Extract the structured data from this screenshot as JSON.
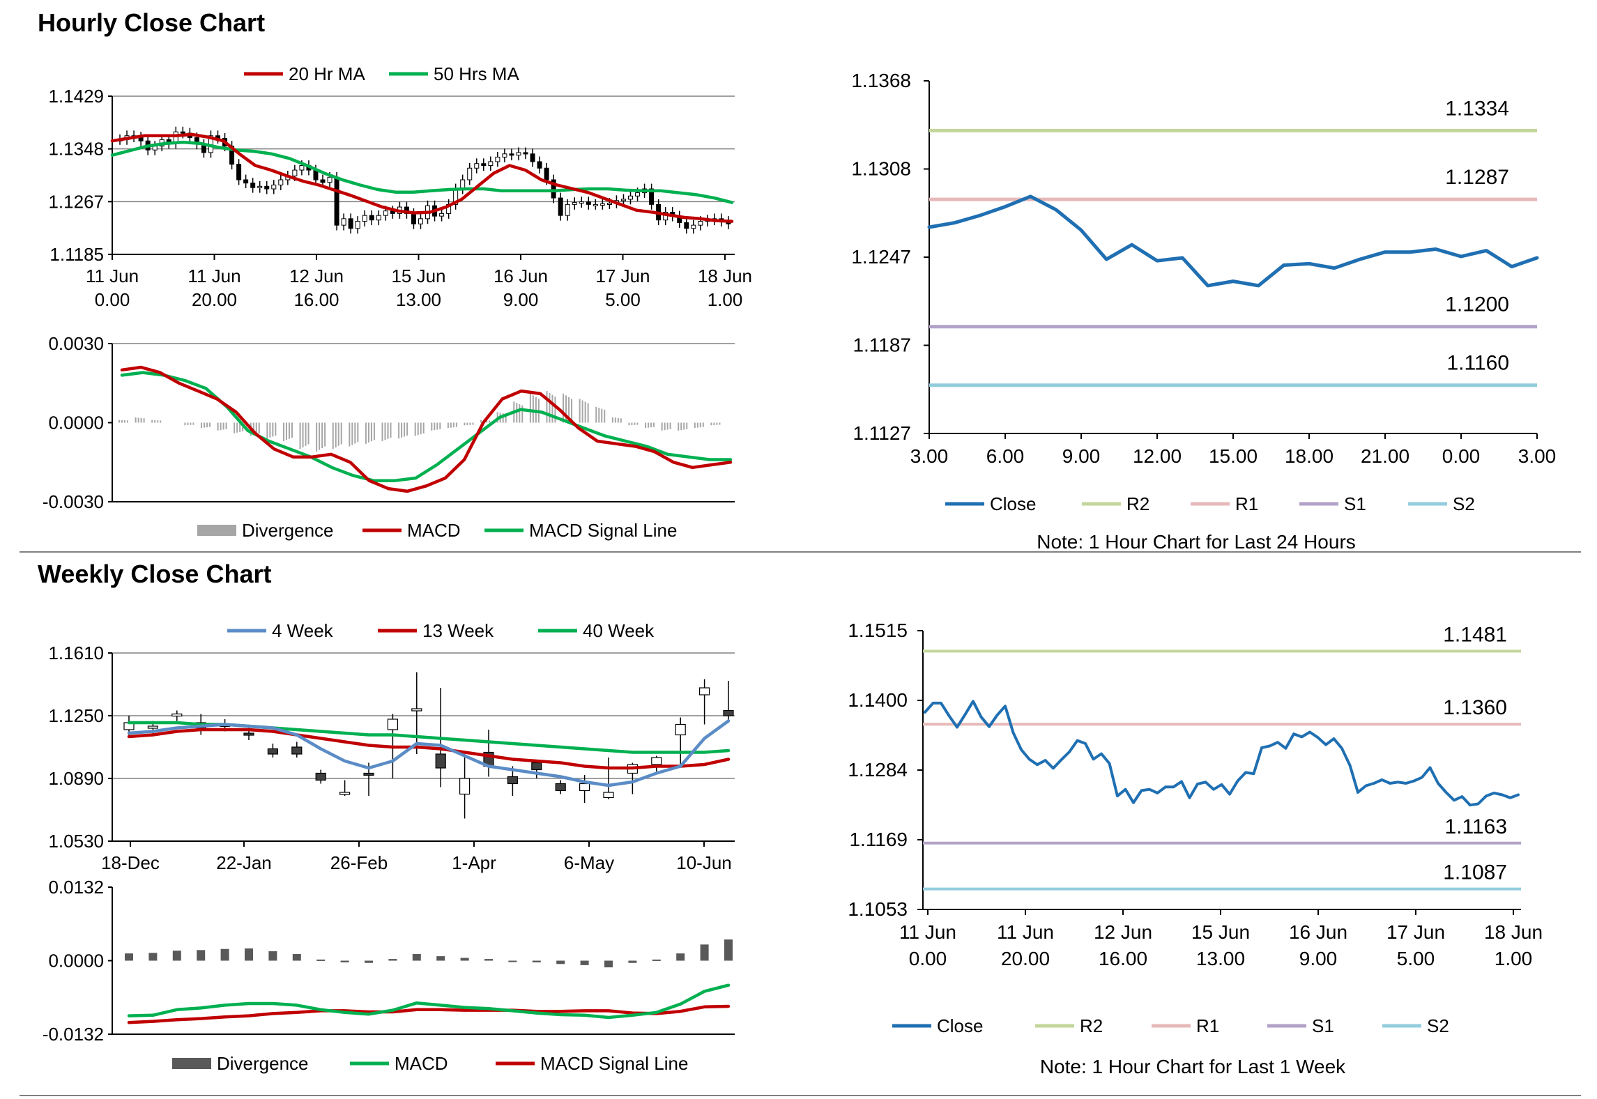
{
  "sections": {
    "hourly_title": "Hourly Close Chart",
    "weekly_title": "Weekly Close Chart"
  },
  "colors": {
    "ma_short": "#C00000",
    "ma_long": "#00B050",
    "close_blue": "#1F6FB2",
    "ma4_blue": "#5B8CC6",
    "r2": "#C3D69B",
    "r1": "#E6B9B8",
    "s1": "#B3A2C7",
    "s2": "#93CDDD",
    "divergence_light": "#A6A6A6",
    "divergence_dark": "#595959",
    "grid": "#808080"
  },
  "chart_data": [
    {
      "id": "hourly_price",
      "type": "candlestick",
      "ylim": [
        1.1185,
        1.1429
      ],
      "yticks": [
        "1.1429",
        "1.1348",
        "1.1267",
        "1.1185"
      ],
      "xticks": [
        {
          "line1": "11 Jun",
          "line2": "0.00"
        },
        {
          "line1": "11 Jun",
          "line2": "20.00"
        },
        {
          "line1": "12 Jun",
          "line2": "16.00"
        },
        {
          "line1": "15 Jun",
          "line2": "13.00"
        },
        {
          "line1": "16 Jun",
          "line2": "9.00"
        },
        {
          "line1": "17 Jun",
          "line2": "5.00"
        },
        {
          "line1": "18 Jun",
          "line2": "1.00"
        }
      ],
      "legend": [
        "20 Hr MA",
        "50 Hrs MA"
      ],
      "close": [
        1.1362,
        1.1368,
        1.1366,
        1.136,
        1.1346,
        1.1352,
        1.1362,
        1.1356,
        1.1374,
        1.1372,
        1.1365,
        1.1355,
        1.1342,
        1.1368,
        1.1364,
        1.1352,
        1.1324,
        1.13,
        1.1295,
        1.1288,
        1.129,
        1.1286,
        1.1292,
        1.13,
        1.1306,
        1.1315,
        1.1322,
        1.1315,
        1.13,
        1.1296,
        1.1304,
        1.123,
        1.124,
        1.1225,
        1.1236,
        1.1245,
        1.1238,
        1.1245,
        1.1252,
        1.1248,
        1.1258,
        1.1248,
        1.1232,
        1.124,
        1.126,
        1.1244,
        1.1248,
        1.1262,
        1.1286,
        1.13,
        1.1318,
        1.1325,
        1.1322,
        1.1328,
        1.1335,
        1.134,
        1.1338,
        1.1342,
        1.134,
        1.1328,
        1.1318,
        1.13,
        1.1272,
        1.1245,
        1.1262,
        1.1265,
        1.1266,
        1.1262,
        1.1262,
        1.1263,
        1.1264,
        1.1268,
        1.127,
        1.1275,
        1.128,
        1.1286,
        1.1262,
        1.1238,
        1.125,
        1.1244,
        1.1234,
        1.1225,
        1.123,
        1.1236,
        1.1238,
        1.124,
        1.1236,
        1.1232
      ],
      "ma20": [
        1.136,
        1.1364,
        1.1368,
        1.1368,
        1.1368,
        1.137,
        1.1366,
        1.136,
        1.134,
        1.1322,
        1.1315,
        1.1306,
        1.1298,
        1.1292,
        1.1284,
        1.1276,
        1.1267,
        1.1258,
        1.1252,
        1.1249,
        1.125,
        1.1258,
        1.127,
        1.129,
        1.131,
        1.1322,
        1.1315,
        1.13,
        1.1292,
        1.1286,
        1.128,
        1.1271,
        1.1262,
        1.1253,
        1.125,
        1.1246,
        1.1242,
        1.124,
        1.1237,
        1.1236
      ],
      "ma50": [
        1.1338,
        1.1345,
        1.1352,
        1.1356,
        1.1358,
        1.1356,
        1.135,
        1.1346,
        1.1344,
        1.134,
        1.1333,
        1.1322,
        1.131,
        1.13,
        1.1292,
        1.1285,
        1.1281,
        1.1281,
        1.1283,
        1.1285,
        1.1286,
        1.1286,
        1.1283,
        1.1283,
        1.1283,
        1.1283,
        1.1285,
        1.1286,
        1.1286,
        1.1284,
        1.1283,
        1.1283,
        1.128,
        1.1277,
        1.1272,
        1.1265
      ]
    },
    {
      "id": "hourly_macd",
      "type": "line+bar",
      "ylim": [
        -0.003,
        0.003
      ],
      "yticks": [
        "0.0030",
        "0.0000",
        "-0.0030"
      ],
      "legend": [
        "Divergence",
        "MACD",
        "MACD Signal Line"
      ],
      "macd": [
        0.002,
        0.0021,
        0.0019,
        0.0015,
        0.0012,
        0.0009,
        0.0004,
        -0.0004,
        -0.001,
        -0.0013,
        -0.0013,
        -0.0012,
        -0.0015,
        -0.0022,
        -0.0025,
        -0.0026,
        -0.0024,
        -0.0021,
        -0.0014,
        0.0,
        0.0009,
        0.0012,
        0.0011,
        0.0005,
        -0.0002,
        -0.0007,
        -0.0008,
        -0.0009,
        -0.0011,
        -0.0015,
        -0.0017,
        -0.0016,
        -0.0015
      ],
      "signal": [
        0.0018,
        0.0019,
        0.0018,
        0.0016,
        0.0013,
        0.0006,
        -0.0003,
        -0.0007,
        -0.001,
        -0.0013,
        -0.0017,
        -0.002,
        -0.0022,
        -0.0022,
        -0.0021,
        -0.0016,
        -0.001,
        -0.0004,
        0.0002,
        0.0005,
        0.0004,
        0.0001,
        -0.0002,
        -0.0005,
        -0.0007,
        -0.0009,
        -0.0012,
        -0.0013,
        -0.0014,
        -0.0014
      ],
      "divergence": [
        0.0001,
        0.0002,
        0.0001,
        0.0,
        -0.0001,
        -0.0002,
        -0.0003,
        -0.0004,
        -0.0005,
        -0.0006,
        -0.0007,
        -0.001,
        -0.0011,
        -0.001,
        -0.0009,
        -0.0008,
        -0.0007,
        -0.0006,
        -0.0005,
        -0.0003,
        -0.0002,
        -0.0001,
        0.0001,
        0.0004,
        0.0008,
        0.0011,
        0.0012,
        0.0011,
        0.0009,
        0.0006,
        0.0002,
        -0.0001,
        -0.0002,
        -0.0003,
        -0.0003,
        -0.0002,
        -0.0001,
        0.0
      ]
    },
    {
      "id": "hourly_24h",
      "type": "line",
      "ylim": [
        1.1127,
        1.1368
      ],
      "yticks": [
        "1.1368",
        "1.1308",
        "1.1247",
        "1.1187",
        "1.1127"
      ],
      "xticks": [
        "3.00",
        "6.00",
        "9.00",
        "12.00",
        "15.00",
        "18.00",
        "21.00",
        "0.00",
        "3.00"
      ],
      "legend": [
        "Close",
        "R2",
        "R1",
        "S1",
        "S2"
      ],
      "levels": [
        {
          "name": "R2",
          "value": 1.1334,
          "label": "1.1334"
        },
        {
          "name": "R1",
          "value": 1.1287,
          "label": "1.1287"
        },
        {
          "name": "S1",
          "value": 1.12,
          "label": "1.1200"
        },
        {
          "name": "S2",
          "value": 1.116,
          "label": "1.1160"
        }
      ],
      "close": [
        1.1268,
        1.1271,
        1.1276,
        1.1282,
        1.1289,
        1.128,
        1.1266,
        1.1246,
        1.1256,
        1.1245,
        1.1247,
        1.1228,
        1.1231,
        1.1228,
        1.1242,
        1.1243,
        1.124,
        1.1246,
        1.1251,
        1.1251,
        1.1253,
        1.1248,
        1.1252,
        1.1241,
        1.1247
      ],
      "note": "Note: 1 Hour Chart for Last 24 Hours"
    },
    {
      "id": "weekly_price",
      "type": "candlestick",
      "ylim": [
        1.053,
        1.161
      ],
      "yticks": [
        "1.1610",
        "1.1250",
        "1.0890",
        "1.0530"
      ],
      "xticks": [
        "18-Dec",
        "22-Jan",
        "26-Feb",
        "1-Apr",
        "6-May",
        "10-Jun"
      ],
      "legend": [
        "4 Week",
        "13 Week",
        "40 Week"
      ],
      "candles": [
        {
          "o": 1.117,
          "c": 1.121,
          "h": 1.125,
          "l": 1.113
        },
        {
          "o": 1.118,
          "c": 1.119,
          "h": 1.122,
          "l": 1.114
        },
        {
          "o": 1.125,
          "c": 1.126,
          "h": 1.128,
          "l": 1.122
        },
        {
          "o": 1.118,
          "c": 1.121,
          "h": 1.126,
          "l": 1.114
        },
        {
          "o": 1.119,
          "c": 1.12,
          "h": 1.123,
          "l": 1.116
        },
        {
          "o": 1.115,
          "c": 1.114,
          "h": 1.118,
          "l": 1.111
        },
        {
          "o": 1.106,
          "c": 1.103,
          "h": 1.109,
          "l": 1.101
        },
        {
          "o": 1.107,
          "c": 1.103,
          "h": 1.11,
          "l": 1.101
        },
        {
          "o": 1.092,
          "c": 1.088,
          "h": 1.094,
          "l": 1.086
        },
        {
          "o": 1.08,
          "c": 1.081,
          "h": 1.088,
          "l": 1.079
        },
        {
          "o": 1.092,
          "c": 1.091,
          "h": 1.098,
          "l": 1.079
        },
        {
          "o": 1.117,
          "c": 1.123,
          "h": 1.126,
          "l": 1.089
        },
        {
          "o": 1.128,
          "c": 1.129,
          "h": 1.15,
          "l": 1.103
        },
        {
          "o": 1.103,
          "c": 1.095,
          "h": 1.141,
          "l": 1.084
        },
        {
          "o": 1.08,
          "c": 1.089,
          "h": 1.103,
          "l": 1.066
        },
        {
          "o": 1.104,
          "c": 1.096,
          "h": 1.117,
          "l": 1.09
        },
        {
          "o": 1.09,
          "c": 1.086,
          "h": 1.096,
          "l": 1.079
        },
        {
          "o": 1.098,
          "c": 1.094,
          "h": 1.099,
          "l": 1.089
        },
        {
          "o": 1.086,
          "c": 1.082,
          "h": 1.088,
          "l": 1.08
        },
        {
          "o": 1.082,
          "c": 1.086,
          "h": 1.091,
          "l": 1.075
        },
        {
          "o": 1.078,
          "c": 1.081,
          "h": 1.101,
          "l": 1.077
        },
        {
          "o": 1.092,
          "c": 1.097,
          "h": 1.098,
          "l": 1.08
        },
        {
          "o": 1.097,
          "c": 1.101,
          "h": 1.102,
          "l": 1.093
        },
        {
          "o": 1.114,
          "c": 1.12,
          "h": 1.124,
          "l": 1.097
        },
        {
          "o": 1.137,
          "c": 1.141,
          "h": 1.146,
          "l": 1.12
        },
        {
          "o": 1.128,
          "c": 1.125,
          "h": 1.145,
          "l": 1.121
        }
      ],
      "ma4": [
        1.115,
        1.116,
        1.118,
        1.119,
        1.12,
        1.119,
        1.118,
        1.114,
        1.106,
        1.099,
        1.095,
        1.099,
        1.109,
        1.108,
        1.102,
        1.096,
        1.094,
        1.092,
        1.09,
        1.087,
        1.085,
        1.087,
        1.092,
        1.096,
        1.112,
        1.122
      ],
      "ma13": [
        1.113,
        1.114,
        1.116,
        1.117,
        1.117,
        1.117,
        1.116,
        1.114,
        1.112,
        1.11,
        1.108,
        1.107,
        1.107,
        1.106,
        1.104,
        1.102,
        1.1,
        1.099,
        1.098,
        1.096,
        1.095,
        1.095,
        1.096,
        1.096,
        1.097,
        1.1
      ],
      "ma40": [
        1.121,
        1.121,
        1.121,
        1.12,
        1.12,
        1.119,
        1.118,
        1.117,
        1.116,
        1.115,
        1.114,
        1.114,
        1.113,
        1.112,
        1.111,
        1.11,
        1.109,
        1.108,
        1.107,
        1.106,
        1.105,
        1.104,
        1.104,
        1.104,
        1.104,
        1.105
      ]
    },
    {
      "id": "weekly_macd",
      "type": "line+bar",
      "ylim": [
        -0.0132,
        0.0132
      ],
      "yticks": [
        "0.0132",
        "0.0000",
        "-0.0132"
      ],
      "legend": [
        "Divergence",
        "MACD",
        "MACD Signal Line"
      ],
      "divergence": [
        0.0013,
        0.0014,
        0.0018,
        0.0019,
        0.0021,
        0.0022,
        0.0017,
        0.0012,
        0.0002,
        -0.0003,
        -0.0004,
        0.0003,
        0.0012,
        0.0008,
        0.0005,
        0.0003,
        -0.0001,
        -0.0003,
        -0.0006,
        -0.0008,
        -0.0012,
        -0.0004,
        0.0002,
        0.0013,
        0.0029,
        0.0038
      ],
      "macd": [
        -0.0099,
        -0.0098,
        -0.0088,
        -0.0085,
        -0.008,
        -0.0077,
        -0.0077,
        -0.008,
        -0.0088,
        -0.0093,
        -0.0096,
        -0.0089,
        -0.0076,
        -0.008,
        -0.0084,
        -0.0086,
        -0.009,
        -0.0094,
        -0.0097,
        -0.0098,
        -0.0102,
        -0.0098,
        -0.0093,
        -0.0078,
        -0.0055,
        -0.0044
      ],
      "signal": [
        -0.0111,
        -0.0109,
        -0.0106,
        -0.0104,
        -0.0101,
        -0.0099,
        -0.0095,
        -0.0093,
        -0.009,
        -0.009,
        -0.0092,
        -0.0092,
        -0.0088,
        -0.0088,
        -0.0089,
        -0.0089,
        -0.0089,
        -0.0091,
        -0.0091,
        -0.009,
        -0.009,
        -0.0094,
        -0.0095,
        -0.0091,
        -0.0083,
        -0.0082
      ]
    },
    {
      "id": "weekly_1w",
      "type": "line",
      "ylim": [
        1.1053,
        1.1515
      ],
      "yticks": [
        "1.1515",
        "1.1400",
        "1.1284",
        "1.1169",
        "1.1053"
      ],
      "xticks": [
        {
          "line1": "11 Jun",
          "line2": "0.00"
        },
        {
          "line1": "11 Jun",
          "line2": "20.00"
        },
        {
          "line1": "12 Jun",
          "line2": "16.00"
        },
        {
          "line1": "15 Jun",
          "line2": "13.00"
        },
        {
          "line1": "16 Jun",
          "line2": "9.00"
        },
        {
          "line1": "17 Jun",
          "line2": "5.00"
        },
        {
          "line1": "18 Jun",
          "line2": "1.00"
        }
      ],
      "legend": [
        "Close",
        "R2",
        "R1",
        "S1",
        "S2"
      ],
      "levels": [
        {
          "name": "R2",
          "value": 1.1481,
          "label": "1.1481"
        },
        {
          "name": "R1",
          "value": 1.136,
          "label": "1.1360"
        },
        {
          "name": "S1",
          "value": 1.1163,
          "label": "1.1163"
        },
        {
          "name": "S2",
          "value": 1.1087,
          "label": "1.1087"
        }
      ],
      "close": [
        1.138,
        1.1395,
        1.1395,
        1.1374,
        1.1355,
        1.1376,
        1.1398,
        1.1372,
        1.1356,
        1.1375,
        1.139,
        1.1346,
        1.1318,
        1.1302,
        1.1293,
        1.13,
        1.1287,
        1.1301,
        1.1314,
        1.1333,
        1.1328,
        1.1302,
        1.1311,
        1.1295,
        1.1241,
        1.1252,
        1.123,
        1.125,
        1.1252,
        1.1246,
        1.1256,
        1.1256,
        1.1265,
        1.1238,
        1.1261,
        1.1264,
        1.1252,
        1.126,
        1.1244,
        1.1266,
        1.128,
        1.1278,
        1.1321,
        1.1324,
        1.133,
        1.132,
        1.1344,
        1.1339,
        1.1347,
        1.1338,
        1.1326,
        1.1336,
        1.132,
        1.1292,
        1.1247,
        1.1258,
        1.1262,
        1.1268,
        1.1262,
        1.1264,
        1.1262,
        1.1266,
        1.1272,
        1.1288,
        1.1262,
        1.1247,
        1.1234,
        1.124,
        1.1226,
        1.1228,
        1.1241,
        1.1246,
        1.1243,
        1.1238,
        1.1243
      ],
      "note": "Note: 1 Hour Chart for Last 1 Week"
    }
  ]
}
